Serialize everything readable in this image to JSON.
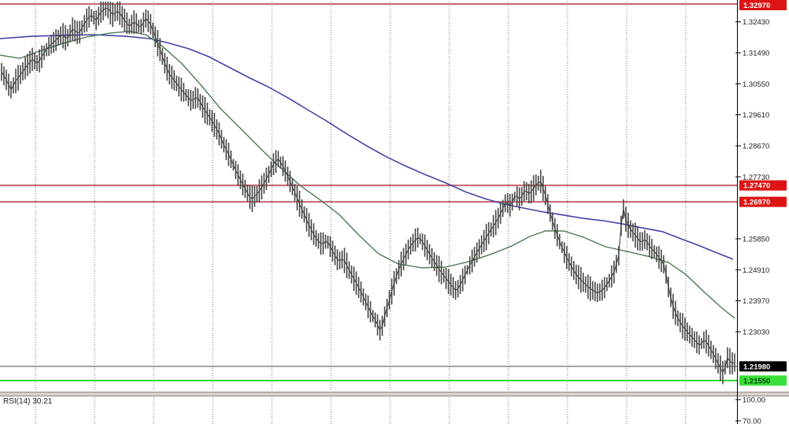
{
  "chart_data": {
    "type": "line",
    "title": "",
    "x_unit": "px (no time axis labels visible)",
    "y_axis": {
      "side": "right",
      "ylim": [
        1.2122,
        1.3303
      ],
      "tick_labels": [
        "1.32430",
        "1.31490",
        "1.30550",
        "1.29610",
        "1.28670",
        "1.27730",
        "1.25850",
        "1.24910",
        "1.23970",
        "1.23030"
      ],
      "grid": "vertical-dotted-only"
    },
    "series": [
      {
        "name": "price",
        "style": "ohlc-bars",
        "color": "#3d3d3d",
        "points": [
          [
            0,
            1.3099
          ],
          [
            8,
            1.307
          ],
          [
            14,
            1.3042
          ],
          [
            20,
            1.307
          ],
          [
            27,
            1.3094
          ],
          [
            34,
            1.3118
          ],
          [
            41,
            1.3137
          ],
          [
            48,
            1.3123
          ],
          [
            55,
            1.3151
          ],
          [
            62,
            1.3171
          ],
          [
            70,
            1.3185
          ],
          [
            78,
            1.3202
          ],
          [
            85,
            1.3185
          ],
          [
            92,
            1.3214
          ],
          [
            100,
            1.3199
          ],
          [
            108,
            1.3233
          ],
          [
            115,
            1.3257
          ],
          [
            122,
            1.3242
          ],
          [
            129,
            1.3273
          ],
          [
            136,
            1.3285
          ],
          [
            143,
            1.3266
          ],
          [
            150,
            1.328
          ],
          [
            157,
            1.3257
          ],
          [
            164,
            1.3237
          ],
          [
            171,
            1.3252
          ],
          [
            178,
            1.3233
          ],
          [
            185,
            1.3261
          ],
          [
            191,
            1.3242
          ],
          [
            197,
            1.3202
          ],
          [
            203,
            1.3161
          ],
          [
            209,
            1.3118
          ],
          [
            215,
            1.3082
          ],
          [
            222,
            1.3058
          ],
          [
            229,
            1.3034
          ],
          [
            236,
            1.3013
          ],
          [
            243,
            1.2994
          ],
          [
            250,
            1.3008
          ],
          [
            257,
            1.2979
          ],
          [
            264,
            1.2955
          ],
          [
            271,
            1.2932
          ],
          [
            278,
            1.2903
          ],
          [
            285,
            1.2867
          ],
          [
            292,
            1.2836
          ],
          [
            299,
            1.28
          ],
          [
            306,
            1.2767
          ],
          [
            313,
            1.2736
          ],
          [
            319,
            1.2712
          ],
          [
            326,
            1.2728
          ],
          [
            333,
            1.275
          ],
          [
            340,
            1.2779
          ],
          [
            347,
            1.2812
          ],
          [
            353,
            1.2826
          ],
          [
            359,
            1.2802
          ],
          [
            366,
            1.2764
          ],
          [
            373,
            1.2724
          ],
          [
            380,
            1.2683
          ],
          [
            387,
            1.2645
          ],
          [
            394,
            1.2609
          ],
          [
            401,
            1.258
          ],
          [
            408,
            1.2564
          ],
          [
            415,
            1.2578
          ],
          [
            422,
            1.2549
          ],
          [
            429,
            1.2521
          ],
          [
            436,
            1.253
          ],
          [
            443,
            1.2497
          ],
          [
            450,
            1.2468
          ],
          [
            457,
            1.2437
          ],
          [
            464,
            1.2401
          ],
          [
            471,
            1.2365
          ],
          [
            477,
            1.2339
          ],
          [
            483,
            1.2305
          ],
          [
            489,
            1.2358
          ],
          [
            495,
            1.2406
          ],
          [
            501,
            1.2454
          ],
          [
            507,
            1.2492
          ],
          [
            513,
            1.2521
          ],
          [
            519,
            1.2549
          ],
          [
            525,
            1.2568
          ],
          [
            531,
            1.2583
          ],
          [
            537,
            1.2566
          ],
          [
            544,
            1.2537
          ],
          [
            551,
            1.2513
          ],
          [
            558,
            1.2489
          ],
          [
            565,
            1.247
          ],
          [
            572,
            1.2451
          ],
          [
            579,
            1.2432
          ],
          [
            586,
            1.2463
          ],
          [
            593,
            1.2499
          ],
          [
            600,
            1.253
          ],
          [
            607,
            1.2559
          ],
          [
            614,
            1.2583
          ],
          [
            621,
            1.2609
          ],
          [
            628,
            1.263
          ],
          [
            635,
            1.2659
          ],
          [
            642,
            1.2693
          ],
          [
            648,
            1.2678
          ],
          [
            654,
            1.2712
          ],
          [
            660,
            1.2695
          ],
          [
            666,
            1.2726
          ],
          [
            672,
            1.2712
          ],
          [
            679,
            1.274
          ],
          [
            686,
            1.2755
          ],
          [
            693,
            1.2707
          ],
          [
            699,
            1.2654
          ],
          [
            705,
            1.2611
          ],
          [
            711,
            1.2575
          ],
          [
            717,
            1.2544
          ],
          [
            724,
            1.2513
          ],
          [
            731,
            1.2485
          ],
          [
            738,
            1.2466
          ],
          [
            745,
            1.2449
          ],
          [
            752,
            1.2434
          ],
          [
            759,
            1.2423
          ],
          [
            766,
            1.2434
          ],
          [
            773,
            1.2456
          ],
          [
            779,
            1.248
          ],
          [
            785,
            1.2528
          ],
          [
            790,
            1.2678
          ],
          [
            795,
            1.2626
          ],
          [
            801,
            1.2602
          ],
          [
            807,
            1.2585
          ],
          [
            813,
            1.2566
          ],
          [
            819,
            1.2578
          ],
          [
            825,
            1.2554
          ],
          [
            831,
            1.2542
          ],
          [
            837,
            1.2525
          ],
          [
            843,
            1.2506
          ],
          [
            849,
            1.243
          ],
          [
            855,
            1.2377
          ],
          [
            861,
            1.2346
          ],
          [
            868,
            1.2322
          ],
          [
            875,
            1.2303
          ],
          [
            882,
            1.2284
          ],
          [
            888,
            1.2267
          ],
          [
            894,
            1.2286
          ],
          [
            901,
            1.2255
          ],
          [
            907,
            1.2227
          ],
          [
            913,
            1.2195
          ],
          [
            918,
            1.2171
          ],
          [
            923,
            1.2219
          ],
          [
            928,
            1.22
          ],
          [
            934,
            1.2203
          ]
        ]
      },
      {
        "name": "ma-slow",
        "style": "line",
        "color": "#4343a8",
        "points": [
          [
            0,
            1.3192
          ],
          [
            40,
            1.3199
          ],
          [
            80,
            1.3202
          ],
          [
            120,
            1.3204
          ],
          [
            160,
            1.3199
          ],
          [
            190,
            1.3192
          ],
          [
            215,
            1.3178
          ],
          [
            240,
            1.3161
          ],
          [
            265,
            1.3137
          ],
          [
            290,
            1.3106
          ],
          [
            315,
            1.3075
          ],
          [
            340,
            1.3046
          ],
          [
            365,
            1.3013
          ],
          [
            390,
            1.2977
          ],
          [
            415,
            1.2941
          ],
          [
            440,
            1.2903
          ],
          [
            465,
            1.2867
          ],
          [
            490,
            1.2834
          ],
          [
            515,
            1.2805
          ],
          [
            540,
            1.2779
          ],
          [
            565,
            1.2755
          ],
          [
            590,
            1.2728
          ],
          [
            615,
            1.2707
          ],
          [
            640,
            1.269
          ],
          [
            665,
            1.2678
          ],
          [
            690,
            1.2666
          ],
          [
            715,
            1.2657
          ],
          [
            740,
            1.2647
          ],
          [
            765,
            1.264
          ],
          [
            790,
            1.263
          ],
          [
            815,
            1.2618
          ],
          [
            840,
            1.2607
          ],
          [
            862,
            1.2587
          ],
          [
            885,
            1.2566
          ],
          [
            908,
            1.2544
          ],
          [
            930,
            1.2523
          ]
        ]
      },
      {
        "name": "ma-fast",
        "style": "line",
        "color": "#4e7a55",
        "points": [
          [
            0,
            1.3142
          ],
          [
            25,
            1.3132
          ],
          [
            50,
            1.3154
          ],
          [
            80,
            1.3178
          ],
          [
            110,
            1.3197
          ],
          [
            140,
            1.3209
          ],
          [
            165,
            1.3214
          ],
          [
            185,
            1.3204
          ],
          [
            205,
            1.3171
          ],
          [
            230,
            1.3118
          ],
          [
            255,
            1.3051
          ],
          [
            280,
            1.2979
          ],
          [
            305,
            1.292
          ],
          [
            330,
            1.286
          ],
          [
            355,
            1.2802
          ],
          [
            380,
            1.2748
          ],
          [
            405,
            1.2705
          ],
          [
            430,
            1.2659
          ],
          [
            455,
            1.2597
          ],
          [
            480,
            1.254
          ],
          [
            505,
            1.2509
          ],
          [
            535,
            1.2497
          ],
          [
            565,
            1.2499
          ],
          [
            595,
            1.2516
          ],
          [
            625,
            1.254
          ],
          [
            650,
            1.2564
          ],
          [
            672,
            1.2592
          ],
          [
            692,
            1.2609
          ],
          [
            715,
            1.2609
          ],
          [
            740,
            1.259
          ],
          [
            768,
            1.2561
          ],
          [
            795,
            1.2547
          ],
          [
            822,
            1.2532
          ],
          [
            848,
            1.2513
          ],
          [
            870,
            1.2477
          ],
          [
            895,
            1.242
          ],
          [
            915,
            1.2377
          ],
          [
            932,
            1.2344
          ]
        ]
      }
    ],
    "levels": [
      {
        "name": "resistance-top",
        "price": 1.3297,
        "label": "1.32970",
        "line_color": "#c2626e",
        "line_width": 2,
        "box_bg": "#dd1414",
        "box_fg": "#ffffff"
      },
      {
        "name": "resistance-upper",
        "price": 1.2747,
        "label": "1.27470",
        "line_color": "#c2626e",
        "line_width": 2,
        "box_bg": "#dd1414",
        "box_fg": "#ffffff"
      },
      {
        "name": "resistance-lower",
        "price": 1.2697,
        "label": "1.26970",
        "line_color": "#c2626e",
        "line_width": 2,
        "box_bg": "#dd1414",
        "box_fg": "#ffffff"
      },
      {
        "name": "current-price",
        "price": 1.2198,
        "label": "1.21980",
        "line_color": "#4a4a4a",
        "line_width": 1,
        "box_bg": "#000000",
        "box_fg": "#ffffff"
      },
      {
        "name": "support-target",
        "price": 1.2155,
        "label": "1.21550",
        "line_color": "#2fd42f",
        "line_width": 2,
        "box_bg": "#3ae03a",
        "box_fg": "#044404"
      }
    ],
    "rsi_pane": {
      "label": "RSI(14) 30.21",
      "tick_labels": [
        "100.00",
        "70.00"
      ]
    }
  },
  "colors": {
    "background": "#ffffff",
    "grid": "#737373",
    "axis": "#000000",
    "tick_text": "#1c1c1c",
    "separator_fill": "#d6d2ca",
    "separator_edge": "#8a8a8a"
  }
}
